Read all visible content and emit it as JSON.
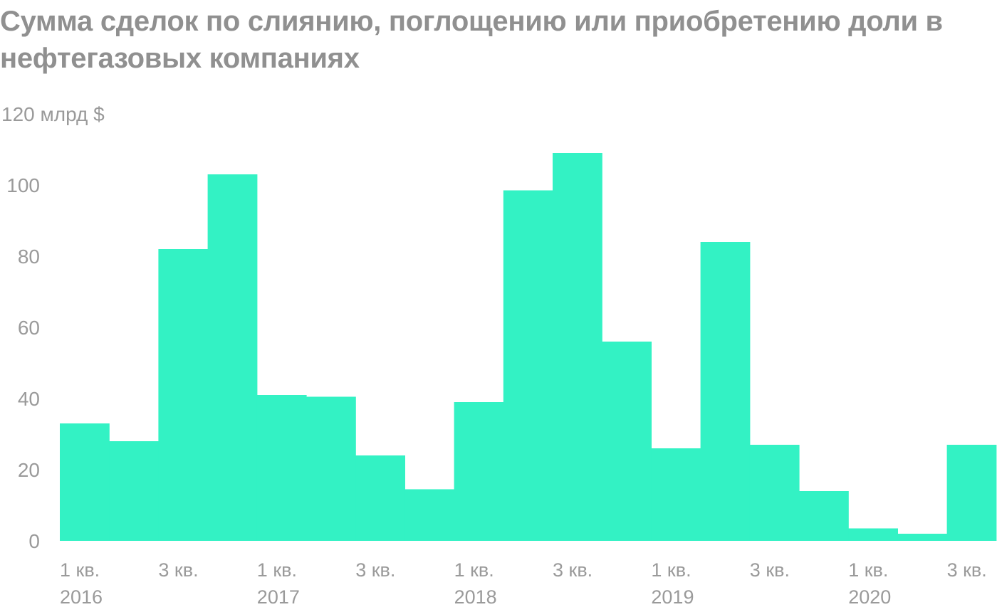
{
  "chart_data": {
    "type": "bar",
    "title": "Сумма сделок по слиянию, поглощению или приобретению доли в нефтегазовых компаниях",
    "unit": "млрд $",
    "categories": [
      "1 кв. 2016",
      "2 кв. 2016",
      "3 кв. 2016",
      "4 кв. 2016",
      "1 кв. 2017",
      "2 кв. 2017",
      "3 кв. 2017",
      "4 кв. 2017",
      "1 кв. 2018",
      "2 кв. 2018",
      "3 кв. 2018",
      "4 кв. 2018",
      "1 кв. 2019",
      "2 кв. 2019",
      "3 кв. 2019",
      "4 кв. 2019",
      "1 кв. 2020",
      "2 кв. 2020",
      "3 кв. 2020"
    ],
    "values": [
      33,
      28,
      82,
      103,
      41,
      40.5,
      24,
      14.5,
      39,
      98.5,
      109,
      56,
      26,
      84,
      27,
      14,
      3.5,
      2,
      27
    ],
    "ylim": [
      0,
      120
    ],
    "yticks": [
      {
        "value": 120,
        "label": "120 млрд $"
      },
      {
        "value": 100,
        "label": "100"
      },
      {
        "value": 80,
        "label": "80"
      },
      {
        "value": 60,
        "label": "60"
      },
      {
        "value": 40,
        "label": "40"
      },
      {
        "value": 20,
        "label": "20"
      },
      {
        "value": 0,
        "label": "0"
      }
    ],
    "xticks": [
      {
        "index": 0,
        "quarter": "1 кв.",
        "year": "2016"
      },
      {
        "index": 2,
        "quarter": "3 кв.",
        "year": ""
      },
      {
        "index": 4,
        "quarter": "1 кв.",
        "year": "2017"
      },
      {
        "index": 6,
        "quarter": "3 кв.",
        "year": ""
      },
      {
        "index": 8,
        "quarter": "1 кв.",
        "year": "2018"
      },
      {
        "index": 10,
        "quarter": "3 кв.",
        "year": ""
      },
      {
        "index": 12,
        "quarter": "1 кв.",
        "year": "2019"
      },
      {
        "index": 14,
        "quarter": "3 кв.",
        "year": ""
      },
      {
        "index": 16,
        "quarter": "1 кв.",
        "year": "2020"
      },
      {
        "index": 18,
        "quarter": "3 кв.",
        "year": ""
      }
    ],
    "bar_color": "#33f2c4",
    "grid": false,
    "legend": "none"
  }
}
